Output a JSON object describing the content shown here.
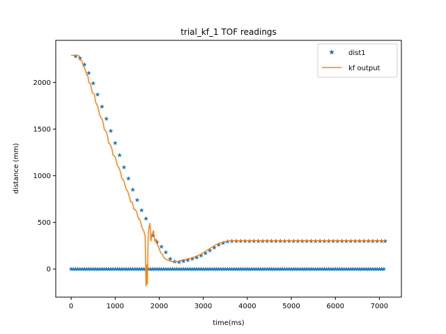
{
  "chart_data": {
    "type": "line",
    "title": "trial_kf_1 TOF readings",
    "xlabel": "time(ms)",
    "ylabel": "distance (mm)",
    "xlim": [
      -350,
      7500
    ],
    "ylim": [
      -300,
      2450
    ],
    "xticks": [
      0,
      1000,
      2000,
      3000,
      4000,
      5000,
      6000,
      7000
    ],
    "yticks": [
      0,
      500,
      1000,
      1500,
      2000,
      2500
    ],
    "legend": {
      "placement": "top-right"
    },
    "grid": false,
    "series": [
      {
        "name": "dist1",
        "kind": "scatter",
        "marker": "star",
        "color": "#1f77b4",
        "valid_x": [
          100,
          200,
          300,
          400,
          500,
          600,
          700,
          800,
          900,
          1000,
          1100,
          1200,
          1300,
          1400,
          1500,
          1600,
          1700,
          1850,
          1950,
          2050,
          2150,
          2250,
          2350,
          2450,
          2550,
          2650,
          2750,
          2850,
          2950,
          3050,
          3150,
          3250,
          3350,
          3450,
          3550,
          3650,
          3750,
          3850,
          3950,
          4050,
          4150,
          4250,
          4350,
          4450,
          4550,
          4650,
          4750,
          4850,
          4950,
          5050,
          5150,
          5250,
          5350,
          5450,
          5550,
          5650,
          5750,
          5850,
          5950,
          6050,
          6150,
          6250,
          6350,
          6450,
          6550,
          6650,
          6750,
          6850,
          6950,
          7050,
          7130
        ],
        "valid_y": [
          2280,
          2260,
          2190,
          2100,
          1990,
          1870,
          1740,
          1610,
          1480,
          1350,
          1220,
          1090,
          970,
          850,
          740,
          630,
          540,
          360,
          290,
          240,
          180,
          110,
          80,
          75,
          85,
          95,
          110,
          125,
          145,
          170,
          200,
          230,
          260,
          280,
          295,
          300,
          300,
          300,
          300,
          300,
          300,
          300,
          300,
          300,
          300,
          300,
          300,
          300,
          300,
          300,
          300,
          300,
          300,
          300,
          300,
          300,
          300,
          300,
          300,
          300,
          300,
          300,
          300,
          300,
          300,
          300,
          300,
          300,
          300,
          300,
          300
        ],
        "zero_x_start": 0,
        "zero_x_end": 7130,
        "zero_x_step": 50,
        "zero_y": 0
      },
      {
        "name": "kf output",
        "kind": "line",
        "color": "#ff7f0e",
        "x": [
          0,
          150,
          180,
          200,
          230,
          250,
          280,
          300,
          330,
          350,
          380,
          400,
          430,
          450,
          480,
          500,
          530,
          550,
          580,
          600,
          630,
          650,
          680,
          700,
          730,
          750,
          780,
          800,
          830,
          850,
          880,
          900,
          930,
          950,
          980,
          1000,
          1030,
          1050,
          1080,
          1100,
          1130,
          1150,
          1180,
          1200,
          1230,
          1250,
          1280,
          1300,
          1330,
          1350,
          1380,
          1400,
          1430,
          1450,
          1480,
          1500,
          1530,
          1550,
          1580,
          1600,
          1630,
          1650,
          1680,
          1700,
          1710,
          1720,
          1730,
          1750,
          1770,
          1790,
          1800,
          1810,
          1840,
          1870,
          1900,
          1930,
          1960,
          1990,
          2030,
          2070,
          2110,
          2150,
          2200,
          2250,
          2300,
          2350,
          2400,
          2450,
          2500,
          2550,
          2650,
          2750,
          2850,
          2950,
          3050,
          3150,
          3250,
          3350,
          3450,
          3550,
          3650,
          3700,
          4000,
          7130
        ],
        "y": [
          2290,
          2290,
          2280,
          2240,
          2240,
          2220,
          2170,
          2160,
          2120,
          2080,
          2070,
          2000,
          1990,
          1960,
          1890,
          1880,
          1870,
          1800,
          1760,
          1750,
          1690,
          1650,
          1620,
          1610,
          1560,
          1500,
          1480,
          1470,
          1420,
          1350,
          1340,
          1320,
          1280,
          1220,
          1210,
          1200,
          1150,
          1110,
          1090,
          1070,
          1020,
          970,
          960,
          940,
          890,
          850,
          840,
          810,
          760,
          720,
          720,
          690,
          640,
          640,
          620,
          590,
          540,
          540,
          500,
          460,
          420,
          410,
          350,
          -180,
          -150,
          50,
          -160,
          380,
          450,
          490,
          400,
          300,
          380,
          410,
          300,
          320,
          260,
          230,
          180,
          160,
          120,
          105,
          95,
          85,
          80,
          78,
          78,
          85,
          95,
          100,
          110,
          120,
          140,
          160,
          190,
          220,
          250,
          275,
          290,
          300,
          305,
          305,
          305,
          305
        ]
      }
    ]
  }
}
